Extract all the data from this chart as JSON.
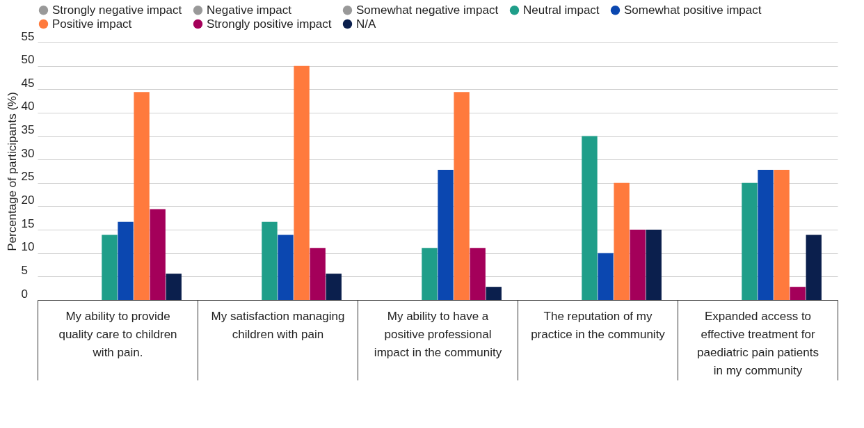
{
  "chart_data": {
    "type": "bar",
    "ylabel": "Percentage of participants (%)",
    "categories": [
      "My ability to provide quality care to children with pain.",
      "My satisfaction managing children with pain",
      "My ability to have a positive professional impact in the community",
      "The reputation of my practice in the community",
      "Expanded access to effective treatment for paediatric pain patients in my community"
    ],
    "series": [
      {
        "name": "Strongly negative impact",
        "color": "#999999",
        "values": [
          0,
          0,
          0,
          0,
          0
        ]
      },
      {
        "name": "Negative impact",
        "color": "#999999",
        "values": [
          0,
          0,
          0,
          0,
          0
        ]
      },
      {
        "name": "Somewhat negative impact",
        "color": "#999999",
        "values": [
          0,
          0,
          0,
          0,
          0
        ]
      },
      {
        "name": "Neutral impact",
        "color": "#1f9e89",
        "values": [
          13.9,
          16.7,
          11.1,
          35,
          25
        ]
      },
      {
        "name": "Somewhat positive impact",
        "color": "#0b47b0",
        "values": [
          16.7,
          13.9,
          27.8,
          10,
          27.8
        ]
      },
      {
        "name": "Positive impact",
        "color": "#ff7a3d",
        "values": [
          44.4,
          50,
          44.4,
          25,
          27.8
        ]
      },
      {
        "name": "Strongly positive impact",
        "color": "#a4005a",
        "values": [
          19.4,
          11.1,
          11.1,
          15,
          2.8
        ]
      },
      {
        "name": "N/A",
        "color": "#0b1f4d",
        "values": [
          5.6,
          5.6,
          2.8,
          15,
          13.9
        ]
      }
    ],
    "ylim": [
      0,
      55
    ],
    "yticks": [
      0,
      5,
      10,
      15,
      20,
      25,
      30,
      35,
      40,
      45,
      50,
      55
    ],
    "grid": "y",
    "legend": "top"
  }
}
